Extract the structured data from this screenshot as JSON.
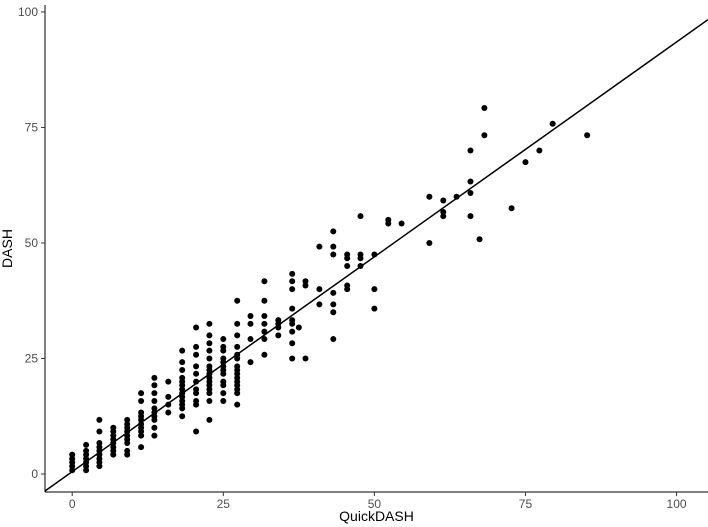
{
  "chart_data": {
    "type": "scatter",
    "title": "",
    "xlabel": "QuickDASH",
    "ylabel": "DASH",
    "xlim": [
      -4.5,
      105.2
    ],
    "ylim": [
      -3.9,
      101.5
    ],
    "xticks": [
      "0",
      "25",
      "50",
      "75",
      "100"
    ],
    "yticks": [
      "0",
      "25",
      "50",
      "75",
      "100"
    ],
    "grid": false,
    "legend": "none",
    "point_color": "#000000",
    "line_color": "#000000",
    "fit_line": {
      "intercept": 0.5,
      "slope": 0.93
    },
    "points": [
      [
        0,
        0.8
      ],
      [
        0,
        1.7
      ],
      [
        0,
        2.5
      ],
      [
        0,
        3.3
      ],
      [
        0,
        4.2
      ],
      [
        2.3,
        0.8
      ],
      [
        2.3,
        1.7
      ],
      [
        2.3,
        2.5
      ],
      [
        2.3,
        3.3
      ],
      [
        2.3,
        4.2
      ],
      [
        2.3,
        5
      ],
      [
        2.3,
        6.3
      ],
      [
        4.5,
        1.7
      ],
      [
        4.5,
        2.5
      ],
      [
        4.5,
        3.3
      ],
      [
        4.5,
        4.2
      ],
      [
        4.5,
        5
      ],
      [
        4.5,
        5.8
      ],
      [
        4.5,
        6.7
      ],
      [
        4.5,
        9.2
      ],
      [
        4.5,
        11.7
      ],
      [
        6.8,
        4.2
      ],
      [
        6.8,
        5
      ],
      [
        6.8,
        5.8
      ],
      [
        6.8,
        6.7
      ],
      [
        6.8,
        7.5
      ],
      [
        6.8,
        8.3
      ],
      [
        6.8,
        9.2
      ],
      [
        6.8,
        10
      ],
      [
        9.1,
        4.2
      ],
      [
        9.1,
        5
      ],
      [
        9.1,
        6.7
      ],
      [
        9.1,
        7.5
      ],
      [
        9.1,
        8.3
      ],
      [
        9.1,
        9.2
      ],
      [
        9.1,
        10
      ],
      [
        9.1,
        10.8
      ],
      [
        9.1,
        11.7
      ],
      [
        11.4,
        5.8
      ],
      [
        11.4,
        8.3
      ],
      [
        11.4,
        9.2
      ],
      [
        11.4,
        10
      ],
      [
        11.4,
        10.8
      ],
      [
        11.4,
        11.7
      ],
      [
        11.4,
        12.5
      ],
      [
        11.4,
        13.3
      ],
      [
        11.4,
        15.8
      ],
      [
        11.4,
        17.5
      ],
      [
        13.6,
        8.3
      ],
      [
        13.6,
        10
      ],
      [
        13.6,
        11.7
      ],
      [
        13.6,
        12.5
      ],
      [
        13.6,
        13.3
      ],
      [
        13.6,
        14.2
      ],
      [
        13.6,
        15.8
      ],
      [
        13.6,
        17.5
      ],
      [
        13.6,
        19.2
      ],
      [
        13.6,
        20.8
      ],
      [
        15.9,
        13.3
      ],
      [
        15.9,
        15
      ],
      [
        15.9,
        16.7
      ],
      [
        15.9,
        20
      ],
      [
        18.2,
        12.5
      ],
      [
        18.2,
        14.2
      ],
      [
        18.2,
        15
      ],
      [
        18.2,
        15.8
      ],
      [
        18.2,
        16.7
      ],
      [
        18.2,
        17.5
      ],
      [
        18.2,
        18.3
      ],
      [
        18.2,
        19.2
      ],
      [
        18.2,
        20
      ],
      [
        18.2,
        20.8
      ],
      [
        18.2,
        22.5
      ],
      [
        18.2,
        24.2
      ],
      [
        18.2,
        26.7
      ],
      [
        20.5,
        9.2
      ],
      [
        20.5,
        15
      ],
      [
        20.5,
        15.8
      ],
      [
        20.5,
        17.5
      ],
      [
        20.5,
        18.3
      ],
      [
        20.5,
        20
      ],
      [
        20.5,
        21.7
      ],
      [
        20.5,
        23.3
      ],
      [
        20.5,
        25.8
      ],
      [
        20.5,
        27.5
      ],
      [
        20.5,
        31.7
      ],
      [
        22.7,
        11.7
      ],
      [
        22.7,
        15.8
      ],
      [
        22.7,
        17.5
      ],
      [
        22.7,
        18.3
      ],
      [
        22.7,
        19.2
      ],
      [
        22.7,
        20
      ],
      [
        22.7,
        20.8
      ],
      [
        22.7,
        21.7
      ],
      [
        22.7,
        22.5
      ],
      [
        22.7,
        23.3
      ],
      [
        22.7,
        25
      ],
      [
        22.7,
        26.7
      ],
      [
        22.7,
        28.3
      ],
      [
        22.7,
        30
      ],
      [
        22.7,
        32.5
      ],
      [
        25,
        15.8
      ],
      [
        25,
        17.5
      ],
      [
        25,
        19.2
      ],
      [
        25,
        20
      ],
      [
        25,
        21.7
      ],
      [
        25,
        22.5
      ],
      [
        25,
        23.3
      ],
      [
        25,
        24.2
      ],
      [
        25,
        25
      ],
      [
        25,
        26.7
      ],
      [
        25,
        27.5
      ],
      [
        25,
        29.2
      ],
      [
        27.3,
        15
      ],
      [
        27.3,
        17.5
      ],
      [
        27.3,
        18.3
      ],
      [
        27.3,
        19.2
      ],
      [
        27.3,
        20
      ],
      [
        27.3,
        20.8
      ],
      [
        27.3,
        21.7
      ],
      [
        27.3,
        22.5
      ],
      [
        27.3,
        23.3
      ],
      [
        27.3,
        25
      ],
      [
        27.3,
        25.8
      ],
      [
        27.3,
        27.5
      ],
      [
        27.3,
        30
      ],
      [
        27.3,
        32.5
      ],
      [
        27.3,
        37.5
      ],
      [
        29.5,
        24.2
      ],
      [
        29.5,
        29.2
      ],
      [
        29.5,
        32.5
      ],
      [
        29.5,
        34.2
      ],
      [
        31.8,
        25.8
      ],
      [
        31.8,
        29.2
      ],
      [
        31.8,
        30.8
      ],
      [
        31.8,
        32.5
      ],
      [
        31.8,
        34.2
      ],
      [
        31.8,
        37.5
      ],
      [
        31.8,
        41.7
      ],
      [
        34.1,
        30
      ],
      [
        34.1,
        31.7
      ],
      [
        34.1,
        32.5
      ],
      [
        34.1,
        33.3
      ],
      [
        36.4,
        25
      ],
      [
        36.4,
        28.3
      ],
      [
        36.4,
        30.8
      ],
      [
        36.4,
        32.5
      ],
      [
        36.4,
        33.3
      ],
      [
        36.4,
        35.8
      ],
      [
        36.4,
        40
      ],
      [
        36.4,
        41.7
      ],
      [
        36.4,
        43.3
      ],
      [
        37.5,
        31.7
      ],
      [
        38.6,
        25
      ],
      [
        38.6,
        40.8
      ],
      [
        38.6,
        41.7
      ],
      [
        40.9,
        36.7
      ],
      [
        40.9,
        40
      ],
      [
        40.9,
        49.2
      ],
      [
        43.2,
        29.2
      ],
      [
        43.2,
        35
      ],
      [
        43.2,
        36.7
      ],
      [
        43.2,
        39.2
      ],
      [
        43.2,
        47.5
      ],
      [
        43.2,
        49.2
      ],
      [
        43.2,
        52.5
      ],
      [
        45.5,
        40
      ],
      [
        45.5,
        40.8
      ],
      [
        45.5,
        45
      ],
      [
        45.5,
        46.7
      ],
      [
        45.5,
        47.5
      ],
      [
        47.7,
        45
      ],
      [
        47.7,
        46.7
      ],
      [
        47.7,
        47.5
      ],
      [
        47.7,
        55.8
      ],
      [
        50,
        35.8
      ],
      [
        50,
        40
      ],
      [
        50,
        47.5
      ],
      [
        52.3,
        54.2
      ],
      [
        52.3,
        55
      ],
      [
        54.5,
        54.2
      ],
      [
        59.1,
        50
      ],
      [
        59.1,
        60
      ],
      [
        61.4,
        55.8
      ],
      [
        61.4,
        56.7
      ],
      [
        61.4,
        59.2
      ],
      [
        63.6,
        60
      ],
      [
        65.9,
        55.8
      ],
      [
        65.9,
        60.8
      ],
      [
        65.9,
        63.3
      ],
      [
        65.9,
        70
      ],
      [
        67.4,
        50.8
      ],
      [
        68.2,
        73.3
      ],
      [
        68.2,
        79.2
      ],
      [
        72.7,
        57.5
      ],
      [
        75,
        67.5
      ],
      [
        77.3,
        70
      ],
      [
        79.5,
        75.8
      ],
      [
        85.2,
        73.3
      ]
    ]
  }
}
